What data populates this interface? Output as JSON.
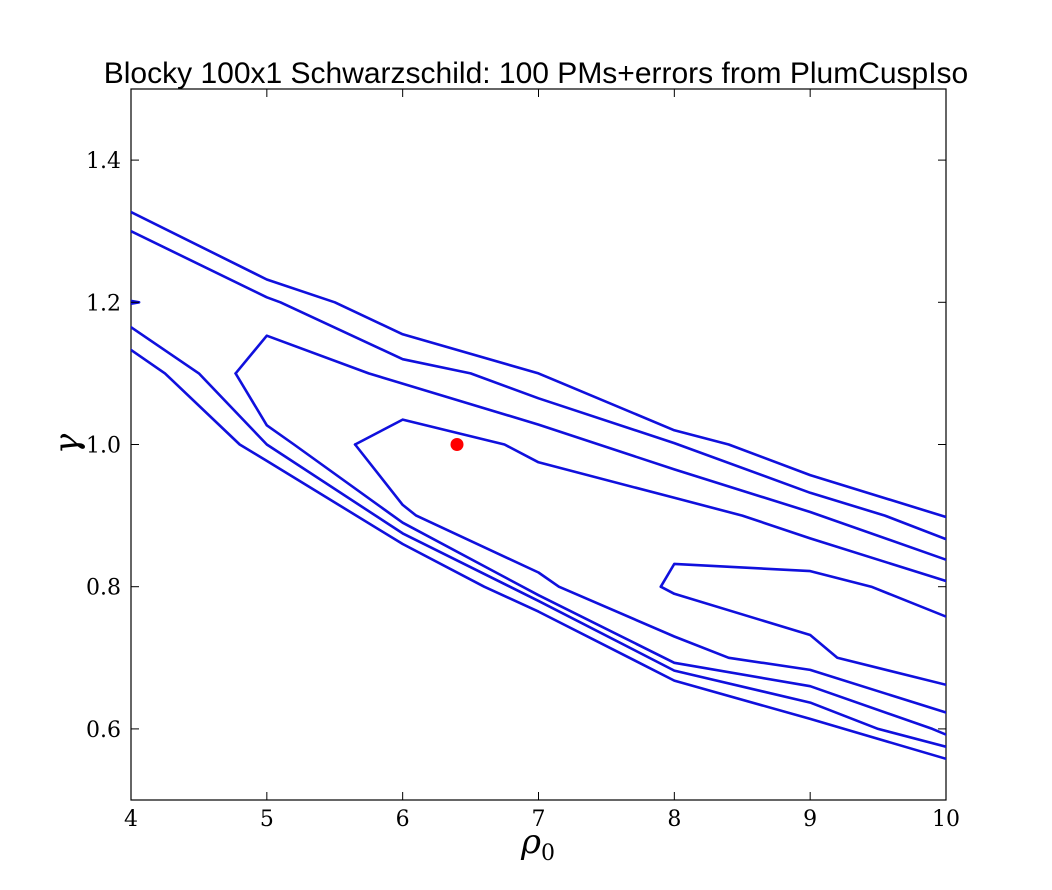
{
  "chart_data": {
    "type": "contour",
    "title": "Blocky 100x1 Schwarzschild: 100 PMs+errors from PlumCuspIso",
    "xlabel": "ρ",
    "xlabel_sub": "0",
    "ylabel": "γ",
    "xlim": [
      4,
      10
    ],
    "ylim": [
      0.5,
      1.5
    ],
    "x_ticks": [
      4,
      5,
      6,
      7,
      8,
      9,
      10
    ],
    "x_tick_labels": [
      "4",
      "5",
      "6",
      "7",
      "8",
      "9",
      "10"
    ],
    "y_ticks": [
      0.6,
      0.8,
      1.0,
      1.2,
      1.4
    ],
    "y_tick_labels": [
      "0.6",
      "0.8",
      "1.0",
      "1.2",
      "1.4"
    ],
    "grid": false,
    "contour_color": "#1010dd",
    "marker_color": "#ff0000",
    "contours": [
      {
        "points": [
          [
            5.65,
            1.0
          ],
          [
            6.0,
            1.035
          ],
          [
            6.75,
            1.0
          ],
          [
            7.0,
            0.975
          ],
          [
            8.0,
            0.925
          ],
          [
            8.5,
            0.9
          ],
          [
            9.0,
            0.868
          ],
          [
            10.0,
            0.808
          ]
        ]
      },
      {
        "points": [
          [
            5.65,
            1.0
          ],
          [
            6.0,
            0.915
          ],
          [
            6.1,
            0.9
          ],
          [
            7.0,
            0.82
          ],
          [
            7.15,
            0.8
          ],
          [
            8.0,
            0.73
          ],
          [
            8.4,
            0.7
          ],
          [
            9.0,
            0.683
          ],
          [
            10.0,
            0.623
          ]
        ]
      },
      {
        "points": [
          [
            7.9,
            0.8
          ],
          [
            8.0,
            0.832
          ],
          [
            9.0,
            0.822
          ],
          [
            9.45,
            0.8
          ],
          [
            10.0,
            0.758
          ]
        ]
      },
      {
        "points": [
          [
            7.9,
            0.8
          ],
          [
            8.0,
            0.79
          ],
          [
            9.0,
            0.732
          ],
          [
            9.2,
            0.7
          ],
          [
            10.0,
            0.662
          ]
        ]
      },
      {
        "points": [
          [
            4.77,
            1.1
          ],
          [
            5.0,
            1.153
          ],
          [
            5.75,
            1.1
          ],
          [
            7.0,
            1.028
          ],
          [
            8.0,
            0.965
          ],
          [
            9.0,
            0.905
          ],
          [
            10.0,
            0.838
          ]
        ]
      },
      {
        "points": [
          [
            4.77,
            1.1
          ],
          [
            5.0,
            1.027
          ],
          [
            5.2,
            1.0
          ],
          [
            6.0,
            0.89
          ],
          [
            7.0,
            0.788
          ],
          [
            8.0,
            0.693
          ],
          [
            9.0,
            0.66
          ],
          [
            9.9,
            0.6
          ],
          [
            10.0,
            0.592
          ]
        ]
      },
      {
        "points": [
          [
            4.0,
            1.3
          ],
          [
            5.0,
            1.207
          ],
          [
            5.1,
            1.2
          ],
          [
            6.0,
            1.12
          ],
          [
            6.5,
            1.1
          ],
          [
            7.0,
            1.065
          ],
          [
            8.0,
            1.002
          ],
          [
            9.0,
            0.932
          ],
          [
            9.55,
            0.9
          ],
          [
            10.0,
            0.867
          ]
        ]
      },
      {
        "points": [
          [
            4.0,
            1.165
          ],
          [
            4.5,
            1.1
          ],
          [
            5.0,
            1.0
          ],
          [
            6.0,
            0.875
          ],
          [
            7.0,
            0.78
          ],
          [
            8.0,
            0.682
          ],
          [
            9.0,
            0.637
          ],
          [
            9.5,
            0.6
          ],
          [
            10.0,
            0.575
          ]
        ]
      },
      {
        "points": [
          [
            4.0,
            1.327
          ],
          [
            5.0,
            1.232
          ],
          [
            5.5,
            1.2
          ],
          [
            6.0,
            1.155
          ],
          [
            7.0,
            1.1
          ],
          [
            8.0,
            1.02
          ],
          [
            8.4,
            1.0
          ],
          [
            9.0,
            0.957
          ],
          [
            10.0,
            0.898
          ]
        ]
      },
      {
        "points": [
          [
            4.0,
            1.133
          ],
          [
            4.25,
            1.1
          ],
          [
            4.8,
            1.0
          ],
          [
            5.0,
            0.977
          ],
          [
            6.0,
            0.86
          ],
          [
            6.6,
            0.8
          ],
          [
            7.0,
            0.765
          ],
          [
            8.0,
            0.668
          ],
          [
            9.0,
            0.614
          ],
          [
            9.25,
            0.6
          ],
          [
            10.0,
            0.558
          ]
        ]
      },
      {
        "points": [
          [
            4.0,
            1.202
          ],
          [
            4.06,
            1.2
          ],
          [
            4.0,
            1.198
          ]
        ]
      }
    ],
    "markers": [
      {
        "x": 6.4,
        "y": 1.0
      }
    ]
  }
}
